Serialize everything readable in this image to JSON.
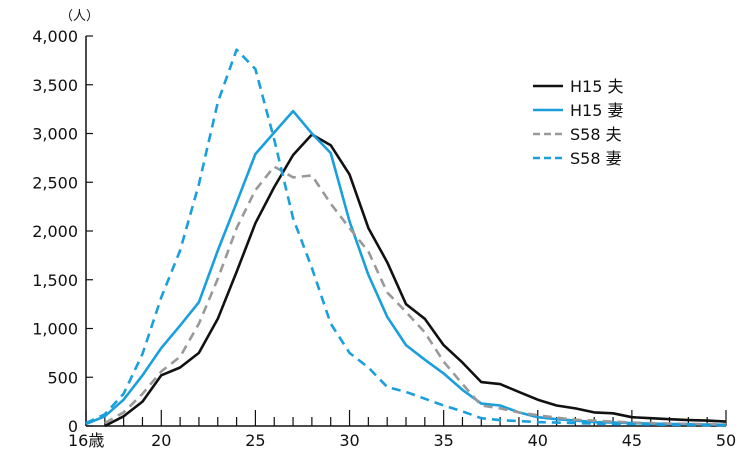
{
  "chart_data": {
    "type": "line",
    "title": "",
    "xlabel": "",
    "ylabel": "",
    "unit_label": "（人）",
    "xlim": [
      16,
      50
    ],
    "ylim": [
      0,
      4000
    ],
    "grid": false,
    "legend_position": "top-right",
    "x_ticks": [
      16,
      20,
      25,
      30,
      35,
      40,
      45,
      50
    ],
    "x_tick_labels": [
      "16歳",
      "20",
      "25",
      "30",
      "35",
      "40",
      "45",
      "50"
    ],
    "y_ticks": [
      0,
      500,
      1000,
      1500,
      2000,
      2500,
      3000,
      3500,
      4000
    ],
    "y_tick_labels": [
      "0",
      "500",
      "1,000",
      "1,500",
      "2,000",
      "2,500",
      "3,000",
      "3,500",
      "4,000"
    ],
    "series": [
      {
        "name": "H15 夫",
        "color": "#111111",
        "dash": "solid",
        "x": [
          17,
          18,
          19,
          20,
          21,
          22,
          23,
          24,
          25,
          26,
          27,
          28,
          29,
          30,
          31,
          32,
          33,
          34,
          35,
          36,
          37,
          38,
          39,
          40,
          41,
          42,
          43,
          44,
          45,
          46,
          47,
          48,
          49,
          50
        ],
        "y": [
          0,
          100,
          250,
          520,
          600,
          750,
          1100,
          1580,
          2080,
          2450,
          2780,
          2990,
          2880,
          2580,
          2030,
          1680,
          1250,
          1100,
          830,
          650,
          450,
          430,
          350,
          270,
          210,
          180,
          140,
          130,
          90,
          80,
          70,
          60,
          55,
          45
        ]
      },
      {
        "name": "H15 妻",
        "color": "#1a9fdc",
        "dash": "solid",
        "x": [
          16,
          17,
          18,
          19,
          20,
          21,
          22,
          23,
          24,
          25,
          26,
          27,
          28,
          29,
          30,
          31,
          32,
          33,
          34,
          35,
          36,
          37,
          38,
          39,
          40,
          41,
          42,
          43,
          44,
          45,
          46,
          47,
          48,
          49,
          50
        ],
        "y": [
          20,
          100,
          270,
          520,
          800,
          1030,
          1270,
          1800,
          2290,
          2790,
          3010,
          3230,
          3000,
          2800,
          2100,
          1550,
          1120,
          830,
          680,
          540,
          370,
          230,
          210,
          140,
          90,
          70,
          55,
          40,
          35,
          30,
          25,
          20,
          18,
          15,
          12
        ]
      },
      {
        "name": "S58 夫",
        "color": "#999999",
        "dash": "dashed",
        "x": [
          17,
          18,
          19,
          20,
          21,
          22,
          23,
          24,
          25,
          26,
          27,
          28,
          29,
          30,
          31,
          32,
          33,
          34,
          35,
          36,
          37,
          38,
          39,
          40,
          41,
          42,
          43,
          44,
          45,
          46,
          47,
          48,
          49,
          50
        ],
        "y": [
          30,
          140,
          330,
          560,
          710,
          1050,
          1510,
          2030,
          2420,
          2660,
          2550,
          2570,
          2280,
          2030,
          1790,
          1370,
          1170,
          960,
          660,
          430,
          210,
          180,
          140,
          110,
          85,
          65,
          55,
          45,
          35,
          30,
          25,
          22,
          20,
          18
        ]
      },
      {
        "name": "S58 妻",
        "color": "#1a9fdc",
        "dash": "dashed",
        "x": [
          16,
          17,
          18,
          19,
          20,
          21,
          22,
          23,
          24,
          25,
          26,
          27,
          28,
          29,
          30,
          31,
          32,
          33,
          34,
          35,
          36,
          37,
          38,
          39,
          40,
          41,
          42,
          43,
          44,
          45,
          46,
          47,
          48,
          49,
          50
        ],
        "y": [
          30,
          120,
          330,
          740,
          1320,
          1800,
          2480,
          3320,
          3860,
          3660,
          2940,
          2130,
          1620,
          1050,
          750,
          600,
          400,
          350,
          280,
          210,
          150,
          80,
          60,
          50,
          40,
          35,
          30,
          25,
          20,
          18,
          15,
          12,
          10,
          8,
          6
        ]
      }
    ]
  }
}
